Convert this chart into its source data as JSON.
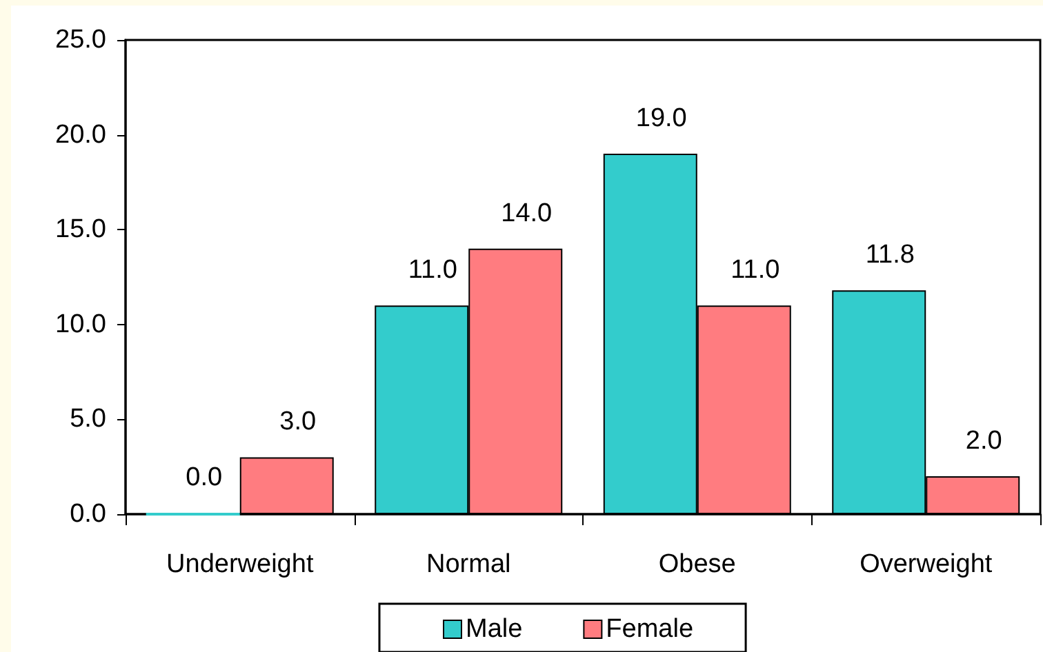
{
  "chart_data": {
    "type": "bar",
    "categories": [
      "Underweight",
      "Normal",
      "Obese",
      "Overweight"
    ],
    "series": [
      {
        "name": "Male",
        "color": "#33cccc",
        "values": [
          0,
          11,
          19,
          11.8
        ],
        "value_labels": [
          "0.0",
          "11.0",
          "19.0",
          "11.8"
        ]
      },
      {
        "name": "Female",
        "color": "#ff7c80",
        "values": [
          3,
          14,
          11,
          2
        ],
        "value_labels": [
          "3.0",
          "14.0",
          "11.0",
          "2.0"
        ]
      }
    ],
    "ylim": [
      0,
      25
    ],
    "yticks": [
      {
        "value": 0,
        "label": "0.0"
      },
      {
        "value": 5,
        "label": "5.0"
      },
      {
        "value": 10,
        "label": "10.0"
      },
      {
        "value": 15,
        "label": "15.0"
      },
      {
        "value": 20,
        "label": "20.0"
      },
      {
        "value": 25,
        "label": "25.0"
      }
    ],
    "legend": "bottom"
  }
}
